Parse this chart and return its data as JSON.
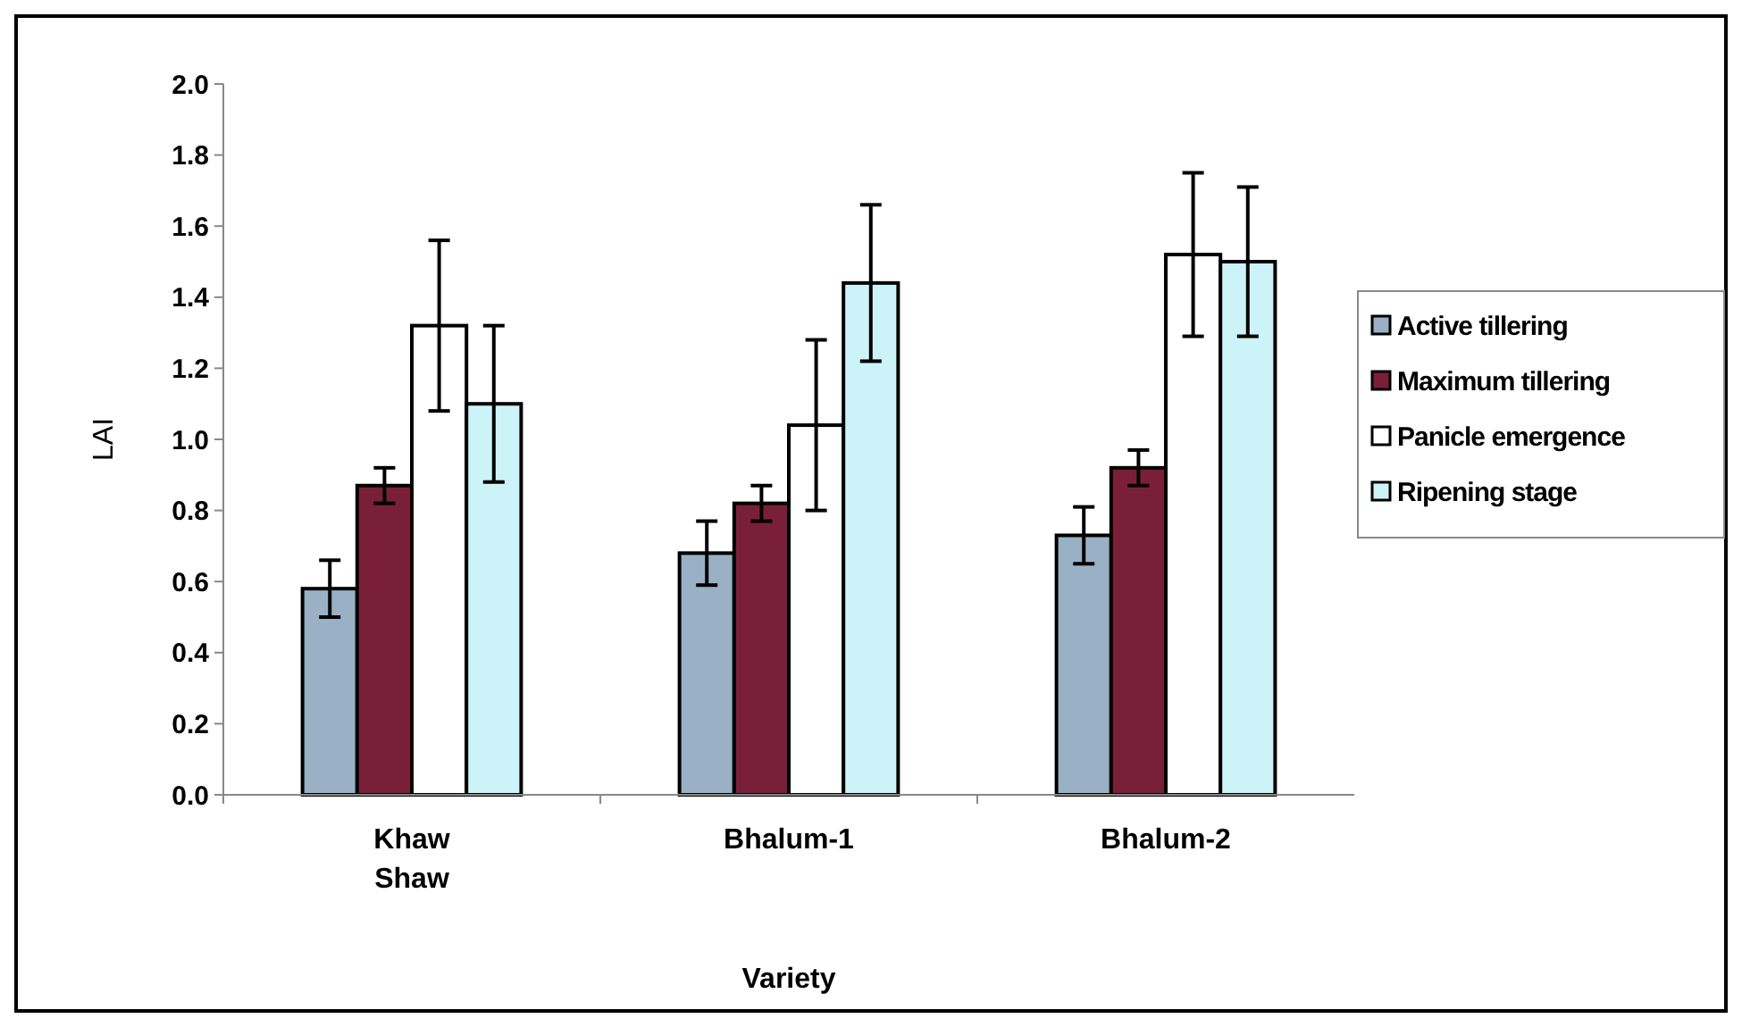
{
  "chart_data": {
    "type": "bar",
    "xlabel": "Variety",
    "ylabel": "LAI",
    "categories": [
      "Khaw Shaw",
      "Bhalum-1",
      "Bhalum-2"
    ],
    "series": [
      {
        "name": "Active tillering",
        "color": "#9ab0c4",
        "values": [
          0.58,
          0.68,
          0.73
        ],
        "errors": [
          0.08,
          0.09,
          0.08
        ]
      },
      {
        "name": "Maximum tillering",
        "color": "#7a1f3a",
        "values": [
          0.87,
          0.82,
          0.92
        ],
        "errors": [
          0.05,
          0.05,
          0.05
        ]
      },
      {
        "name": "Panicle emergence",
        "color": "#ffffff",
        "values": [
          1.32,
          1.04,
          1.52
        ],
        "errors": [
          0.24,
          0.24,
          0.23
        ]
      },
      {
        "name": "Ripening stage",
        "color": "#ccf4f8",
        "values": [
          1.1,
          1.44,
          1.5
        ],
        "errors": [
          0.22,
          0.22,
          0.21
        ]
      }
    ],
    "ylim": [
      0,
      2
    ],
    "yticks": [
      {
        "value": 0,
        "label": "0.0"
      },
      {
        "value": 0.2,
        "label": "0.2"
      },
      {
        "value": 0.4,
        "label": "0.4"
      },
      {
        "value": 0.6,
        "label": "0.6"
      },
      {
        "value": 0.8,
        "label": "0.8"
      },
      {
        "value": 1,
        "label": "1.0"
      },
      {
        "value": 1.2,
        "label": "1.2"
      },
      {
        "value": 1.4,
        "label": "1.4"
      },
      {
        "value": 1.6,
        "label": "1.6"
      },
      {
        "value": 1.8,
        "label": "1.8"
      },
      {
        "value": 2,
        "label": "2.0"
      }
    ],
    "grid": false,
    "legend": "right"
  }
}
